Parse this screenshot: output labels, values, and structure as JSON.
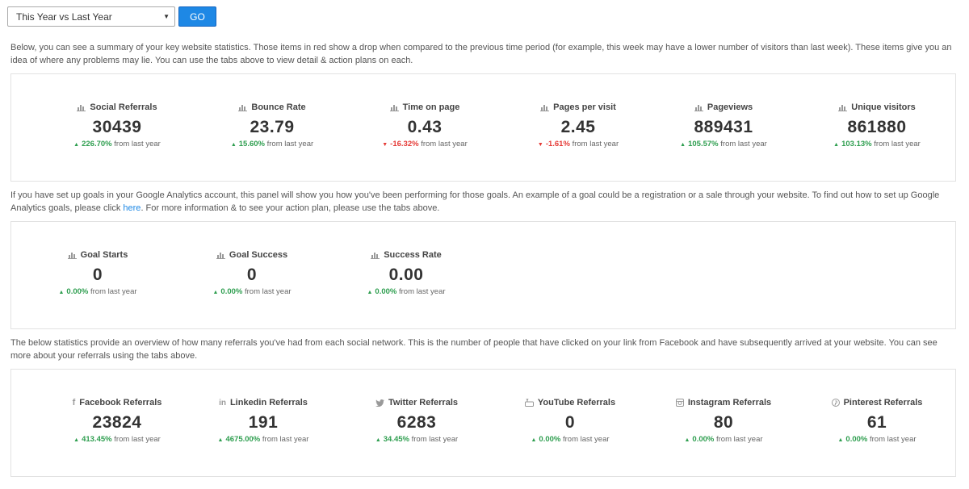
{
  "toolbar": {
    "period_value": "This Year vs Last Year",
    "go_label": "GO"
  },
  "section1": {
    "description": "Below, you can see a summary of your key website statistics. Those items in red show a drop when compared to the previous time period (for example, this week may have a lower number of visitors than last week). These items give you an idea of where any problems may lie. You can use the tabs above to view detail & action plans on each.",
    "stats": [
      {
        "label": "Social Referrals",
        "value": "30439",
        "change": "226.70%",
        "direction": "up",
        "suffix": "from last year"
      },
      {
        "label": "Bounce Rate",
        "value": "23.79",
        "change": "15.60%",
        "direction": "up",
        "suffix": "from last year"
      },
      {
        "label": "Time on page",
        "value": "0.43",
        "change": "-16.32%",
        "direction": "down",
        "suffix": "from last year"
      },
      {
        "label": "Pages per visit",
        "value": "2.45",
        "change": "-1.61%",
        "direction": "down",
        "suffix": "from last year"
      },
      {
        "label": "Pageviews",
        "value": "889431",
        "change": "105.57%",
        "direction": "up",
        "suffix": "from last year"
      },
      {
        "label": "Unique visitors",
        "value": "861880",
        "change": "103.13%",
        "direction": "up",
        "suffix": "from last year"
      }
    ]
  },
  "section2": {
    "description_before": "If you have set up goals in your Google Analytics account, this panel will show you how you've been performing for those goals. An example of a goal could be a registration or a sale through your website. To find out how to set up Google Analytics goals, please click ",
    "link_text": "here",
    "description_after": ". For more information & to see your action plan, please use the tabs above.",
    "stats": [
      {
        "label": "Goal Starts",
        "value": "0",
        "change": "0.00%",
        "direction": "up",
        "suffix": "from last year"
      },
      {
        "label": "Goal Success",
        "value": "0",
        "change": "0.00%",
        "direction": "up",
        "suffix": "from last year"
      },
      {
        "label": "Success Rate",
        "value": "0.00",
        "change": "0.00%",
        "direction": "up",
        "suffix": "from last year"
      }
    ]
  },
  "section3": {
    "description": "The below statistics provide an overview of how many referrals you've had from each social network. This is the number of people that have clicked on your link from Facebook and have subsequently arrived at your website. You can see more about your referrals using the tabs above.",
    "stats": [
      {
        "label": "Facebook Referrals",
        "value": "23824",
        "change": "413.45%",
        "direction": "up",
        "suffix": "from last year",
        "icon": "facebook-icon"
      },
      {
        "label": "Linkedin Referrals",
        "value": "191",
        "change": "4675.00%",
        "direction": "up",
        "suffix": "from last year",
        "icon": "linkedin-icon"
      },
      {
        "label": "Twitter Referrals",
        "value": "6283",
        "change": "34.45%",
        "direction": "up",
        "suffix": "from last year",
        "icon": "twitter-icon"
      },
      {
        "label": "YouTube Referrals",
        "value": "0",
        "change": "0.00%",
        "direction": "up",
        "suffix": "from last year",
        "icon": "youtube-icon"
      },
      {
        "label": "Instagram Referrals",
        "value": "80",
        "change": "0.00%",
        "direction": "up",
        "suffix": "from last year",
        "icon": "instagram-icon"
      },
      {
        "label": "Pinterest Referrals",
        "value": "61",
        "change": "0.00%",
        "direction": "up",
        "suffix": "from last year",
        "icon": "pinterest-icon"
      }
    ]
  },
  "colors": {
    "accent": "#1e88e5",
    "up": "#2e9e4f",
    "down": "#e53935"
  }
}
